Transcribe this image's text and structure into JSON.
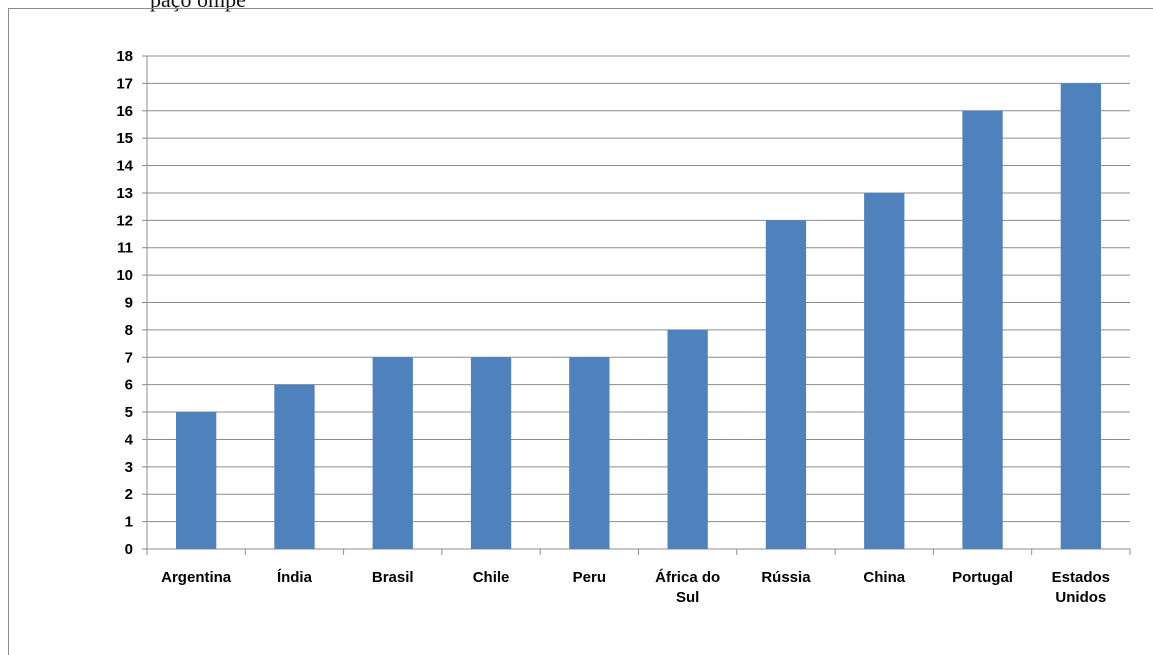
{
  "top_text": "paço ompe     ",
  "chart_data": {
    "type": "bar",
    "title": "",
    "xlabel": "",
    "ylabel": "",
    "categories": [
      "Argentina",
      "Índia",
      "Brasil",
      "Chile",
      "Peru",
      "África do Sul",
      "Rússia",
      "China",
      "Portugal",
      "Estados Unidos"
    ],
    "category_lines": [
      [
        "Argentina"
      ],
      [
        "Índia"
      ],
      [
        "Brasil"
      ],
      [
        "Chile"
      ],
      [
        "Peru"
      ],
      [
        "África do",
        "Sul"
      ],
      [
        "Rússia"
      ],
      [
        "China"
      ],
      [
        "Portugal"
      ],
      [
        "Estados",
        "Unidos"
      ]
    ],
    "values": [
      5,
      6,
      7,
      7,
      7,
      8,
      12,
      13,
      16,
      17
    ],
    "ylim": [
      0,
      18
    ],
    "yticks": [
      0,
      1,
      2,
      3,
      4,
      5,
      6,
      7,
      8,
      9,
      10,
      11,
      12,
      13,
      14,
      15,
      16,
      17,
      18
    ],
    "grid": true,
    "legend": "none",
    "bar_color": "#4f81bd"
  }
}
